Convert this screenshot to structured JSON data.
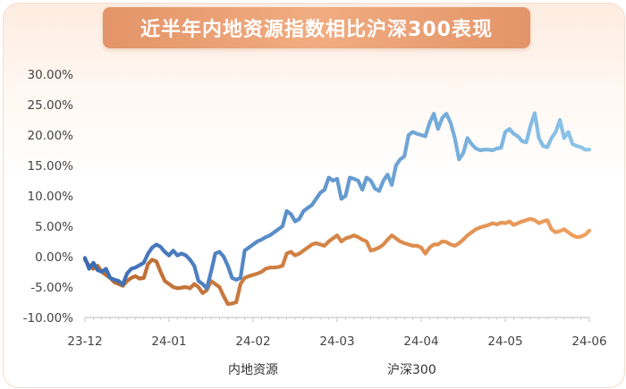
{
  "chart_data": {
    "type": "line",
    "title": "近半年内地资源指数相比沪深300表现",
    "xlabel": "",
    "ylabel": "",
    "x_tick_labels": [
      "23-12",
      "24-01",
      "24-02",
      "24-03",
      "24-04",
      "24-05",
      "24-06"
    ],
    "y_tick_labels": [
      "30.00%",
      "25.00%",
      "20.00%",
      "15.00%",
      "10.00%",
      "5.00%",
      "0.00%",
      "-5.00%",
      "-10.00%"
    ],
    "ylim": [
      -10,
      30
    ],
    "grid": false,
    "legend_position": "bottom",
    "x_range": [
      0,
      120
    ],
    "series": [
      {
        "name": "内地资源",
        "color_start": "#3a6bb3",
        "color_end": "#8ec6ea",
        "x": [
          0,
          1,
          2,
          3,
          4,
          5,
          6,
          7,
          8,
          9,
          10,
          11,
          12,
          13,
          14,
          15,
          16,
          17,
          18,
          19,
          20,
          21,
          22,
          23,
          24,
          25,
          26,
          27,
          28,
          29,
          30,
          31,
          32,
          33,
          34,
          35,
          36,
          37,
          38,
          39,
          40,
          41,
          42,
          43,
          44,
          45,
          46,
          47,
          48,
          49,
          50,
          51,
          52,
          53,
          54,
          55,
          56,
          57,
          58,
          59,
          60,
          61,
          62,
          63,
          64,
          65,
          66,
          67,
          68,
          69,
          70,
          71,
          72,
          73,
          74,
          75,
          76,
          77,
          78,
          79,
          80,
          81,
          82,
          83,
          84,
          85,
          86,
          87,
          88,
          89,
          90,
          91,
          92,
          93,
          94,
          95,
          96,
          97,
          98,
          99,
          100,
          101,
          102,
          103,
          104,
          105,
          106,
          107,
          108,
          109,
          110,
          111,
          112,
          113,
          114,
          115,
          116,
          117,
          118,
          119,
          120
        ],
        "values": [
          -0.2,
          -2.0,
          -1.0,
          -2.2,
          -2.5,
          -2.0,
          -3.5,
          -3.8,
          -4.0,
          -4.6,
          -2.8,
          -2.0,
          -1.8,
          -1.4,
          -1.0,
          0.5,
          1.5,
          2.0,
          1.6,
          0.8,
          0.2,
          1.0,
          0.2,
          0.5,
          0.2,
          -0.5,
          -1.5,
          -4.0,
          -4.5,
          -5.2,
          -2.5,
          0.5,
          0.8,
          0.0,
          -1.5,
          -3.5,
          -3.8,
          -3.5,
          1.0,
          1.5,
          2.0,
          2.5,
          2.8,
          3.2,
          3.5,
          4.0,
          4.5,
          5.0,
          7.5,
          7.0,
          5.8,
          6.2,
          7.5,
          8.0,
          8.5,
          9.5,
          10.5,
          11.0,
          13.0,
          12.5,
          12.8,
          9.5,
          10.0,
          13.0,
          12.8,
          12.5,
          11.0,
          13.0,
          12.5,
          11.2,
          10.8,
          12.5,
          13.5,
          11.8,
          15.0,
          16.0,
          16.5,
          20.0,
          20.5,
          20.2,
          20.0,
          19.8,
          22.0,
          23.5,
          21.0,
          22.8,
          23.5,
          22.0,
          19.5,
          16.0,
          17.0,
          19.5,
          18.5,
          17.8,
          17.5,
          17.6,
          17.6,
          17.5,
          17.8,
          17.9,
          20.5,
          21.0,
          20.2,
          19.8,
          19.0,
          18.8,
          21.5,
          23.6,
          19.5,
          18.2,
          18.0,
          19.5,
          20.5,
          22.5,
          19.5,
          20.5,
          18.5,
          18.2,
          18.0,
          17.6,
          17.6
        ]
      },
      {
        "name": "沪深300",
        "color_start": "#b96a30",
        "color_end": "#f0a060",
        "x": [
          0,
          1,
          2,
          3,
          4,
          5,
          6,
          7,
          8,
          9,
          10,
          11,
          12,
          13,
          14,
          15,
          16,
          17,
          18,
          19,
          20,
          21,
          22,
          23,
          24,
          25,
          26,
          27,
          28,
          29,
          30,
          31,
          32,
          33,
          34,
          35,
          36,
          37,
          38,
          39,
          40,
          41,
          42,
          43,
          44,
          45,
          46,
          47,
          48,
          49,
          50,
          51,
          52,
          53,
          54,
          55,
          56,
          57,
          58,
          59,
          60,
          61,
          62,
          63,
          64,
          65,
          66,
          67,
          68,
          69,
          70,
          71,
          72,
          73,
          74,
          75,
          76,
          77,
          78,
          79,
          80,
          81,
          82,
          83,
          84,
          85,
          86,
          87,
          88,
          89,
          90,
          91,
          92,
          93,
          94,
          95,
          96,
          97,
          98,
          99,
          100,
          101,
          102,
          103,
          104,
          105,
          106,
          107,
          108,
          109,
          110,
          111,
          112,
          113,
          114,
          115,
          116,
          117,
          118,
          119,
          120
        ],
        "values": [
          -0.5,
          -1.5,
          -2.0,
          -1.5,
          -2.5,
          -3.0,
          -3.5,
          -4.2,
          -4.5,
          -4.8,
          -4.0,
          -3.5,
          -3.2,
          -3.6,
          -3.5,
          -1.2,
          -0.5,
          -0.8,
          -2.5,
          -4.0,
          -4.5,
          -5.0,
          -5.2,
          -5.1,
          -5.0,
          -5.2,
          -4.5,
          -5.0,
          -6.0,
          -5.5,
          -4.0,
          -4.5,
          -5.0,
          -6.5,
          -7.8,
          -7.7,
          -7.5,
          -4.5,
          -3.5,
          -3.2,
          -3.0,
          -2.8,
          -2.5,
          -2.0,
          -1.8,
          -1.8,
          -1.7,
          -1.5,
          0.5,
          0.8,
          0.2,
          0.5,
          1.0,
          1.5,
          2.0,
          2.2,
          2.0,
          1.8,
          2.5,
          3.0,
          3.5,
          2.5,
          3.0,
          3.2,
          3.5,
          3.2,
          2.8,
          2.5,
          1.0,
          1.2,
          1.5,
          2.0,
          2.8,
          3.5,
          3.0,
          2.5,
          2.2,
          2.0,
          1.8,
          1.8,
          1.5,
          0.5,
          1.5,
          2.0,
          2.0,
          2.5,
          2.4,
          2.0,
          1.8,
          2.2,
          2.8,
          3.5,
          4.0,
          4.5,
          4.8,
          5.0,
          5.2,
          5.5,
          5.3,
          5.6,
          5.5,
          5.8,
          5.2,
          5.5,
          5.8,
          6.0,
          6.2,
          6.0,
          5.5,
          5.8,
          6.0,
          4.5,
          4.0,
          4.2,
          4.5,
          4.0,
          3.5,
          3.2,
          3.3,
          3.6,
          4.3
        ]
      }
    ]
  }
}
